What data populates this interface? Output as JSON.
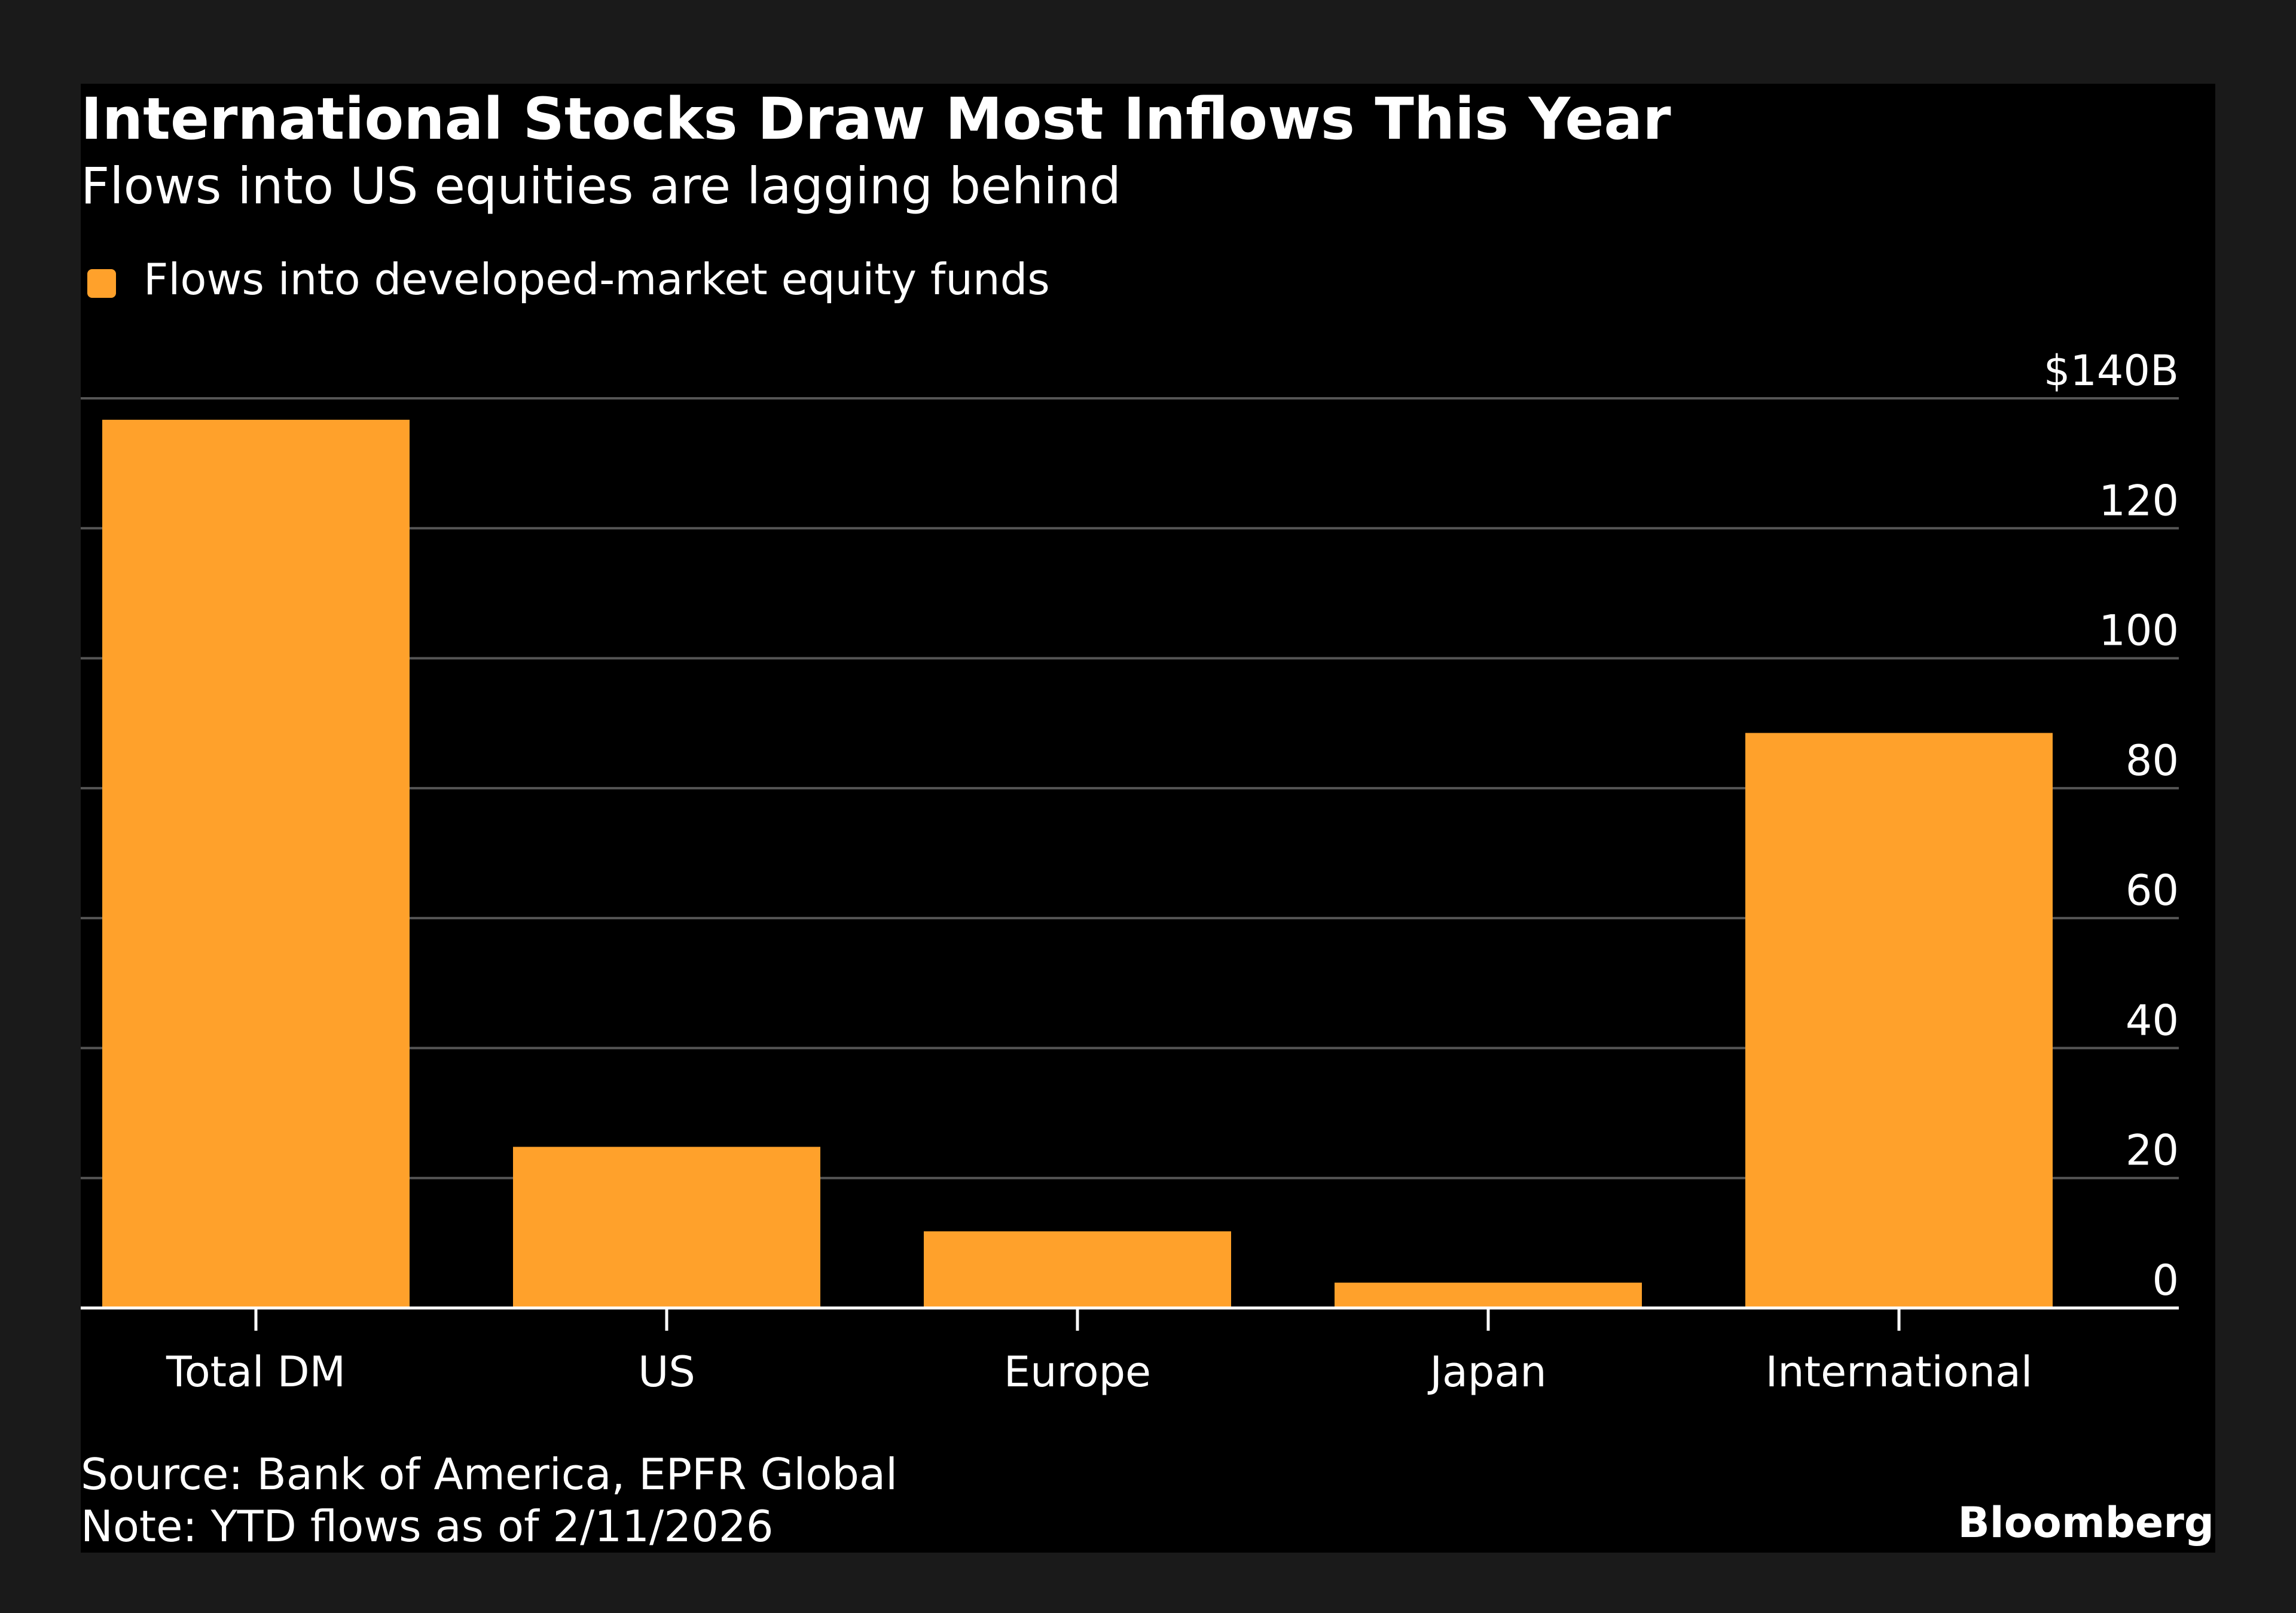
{
  "chart_data": {
    "type": "bar",
    "title": "International Stocks Draw Most Inflows This Year",
    "subtitle": "Flows into US equities are lagging behind",
    "legend": [
      {
        "name": "Flows into developed-market equity funds",
        "color": "#ffa12b"
      }
    ],
    "legend_placement": "top-left",
    "categories": [
      "Total DM",
      "US",
      "Europe",
      "Japan",
      "International"
    ],
    "series": [
      {
        "name": "Flows into developed-market equity funds",
        "values": [
          136.7,
          24.8,
          11.8,
          3.9,
          88.5
        ]
      }
    ],
    "ylim": [
      0,
      140
    ],
    "yticks": [
      0,
      20,
      40,
      60,
      80,
      100,
      120,
      140
    ],
    "ytick_labels": [
      "0",
      "20",
      "40",
      "60",
      "80",
      "100",
      "120",
      "$140B"
    ],
    "y_axis_side": "right",
    "grid": true,
    "source": "Source: Bank of America, EPFR Global",
    "note": "Note: YTD flows as of 2/11/2026",
    "brand": "Bloomberg",
    "colors": {
      "bar": "#ffa12b",
      "background": "#000000",
      "outer": "#1a1a1a",
      "grid": "#555555",
      "text": "#ffffff"
    }
  }
}
